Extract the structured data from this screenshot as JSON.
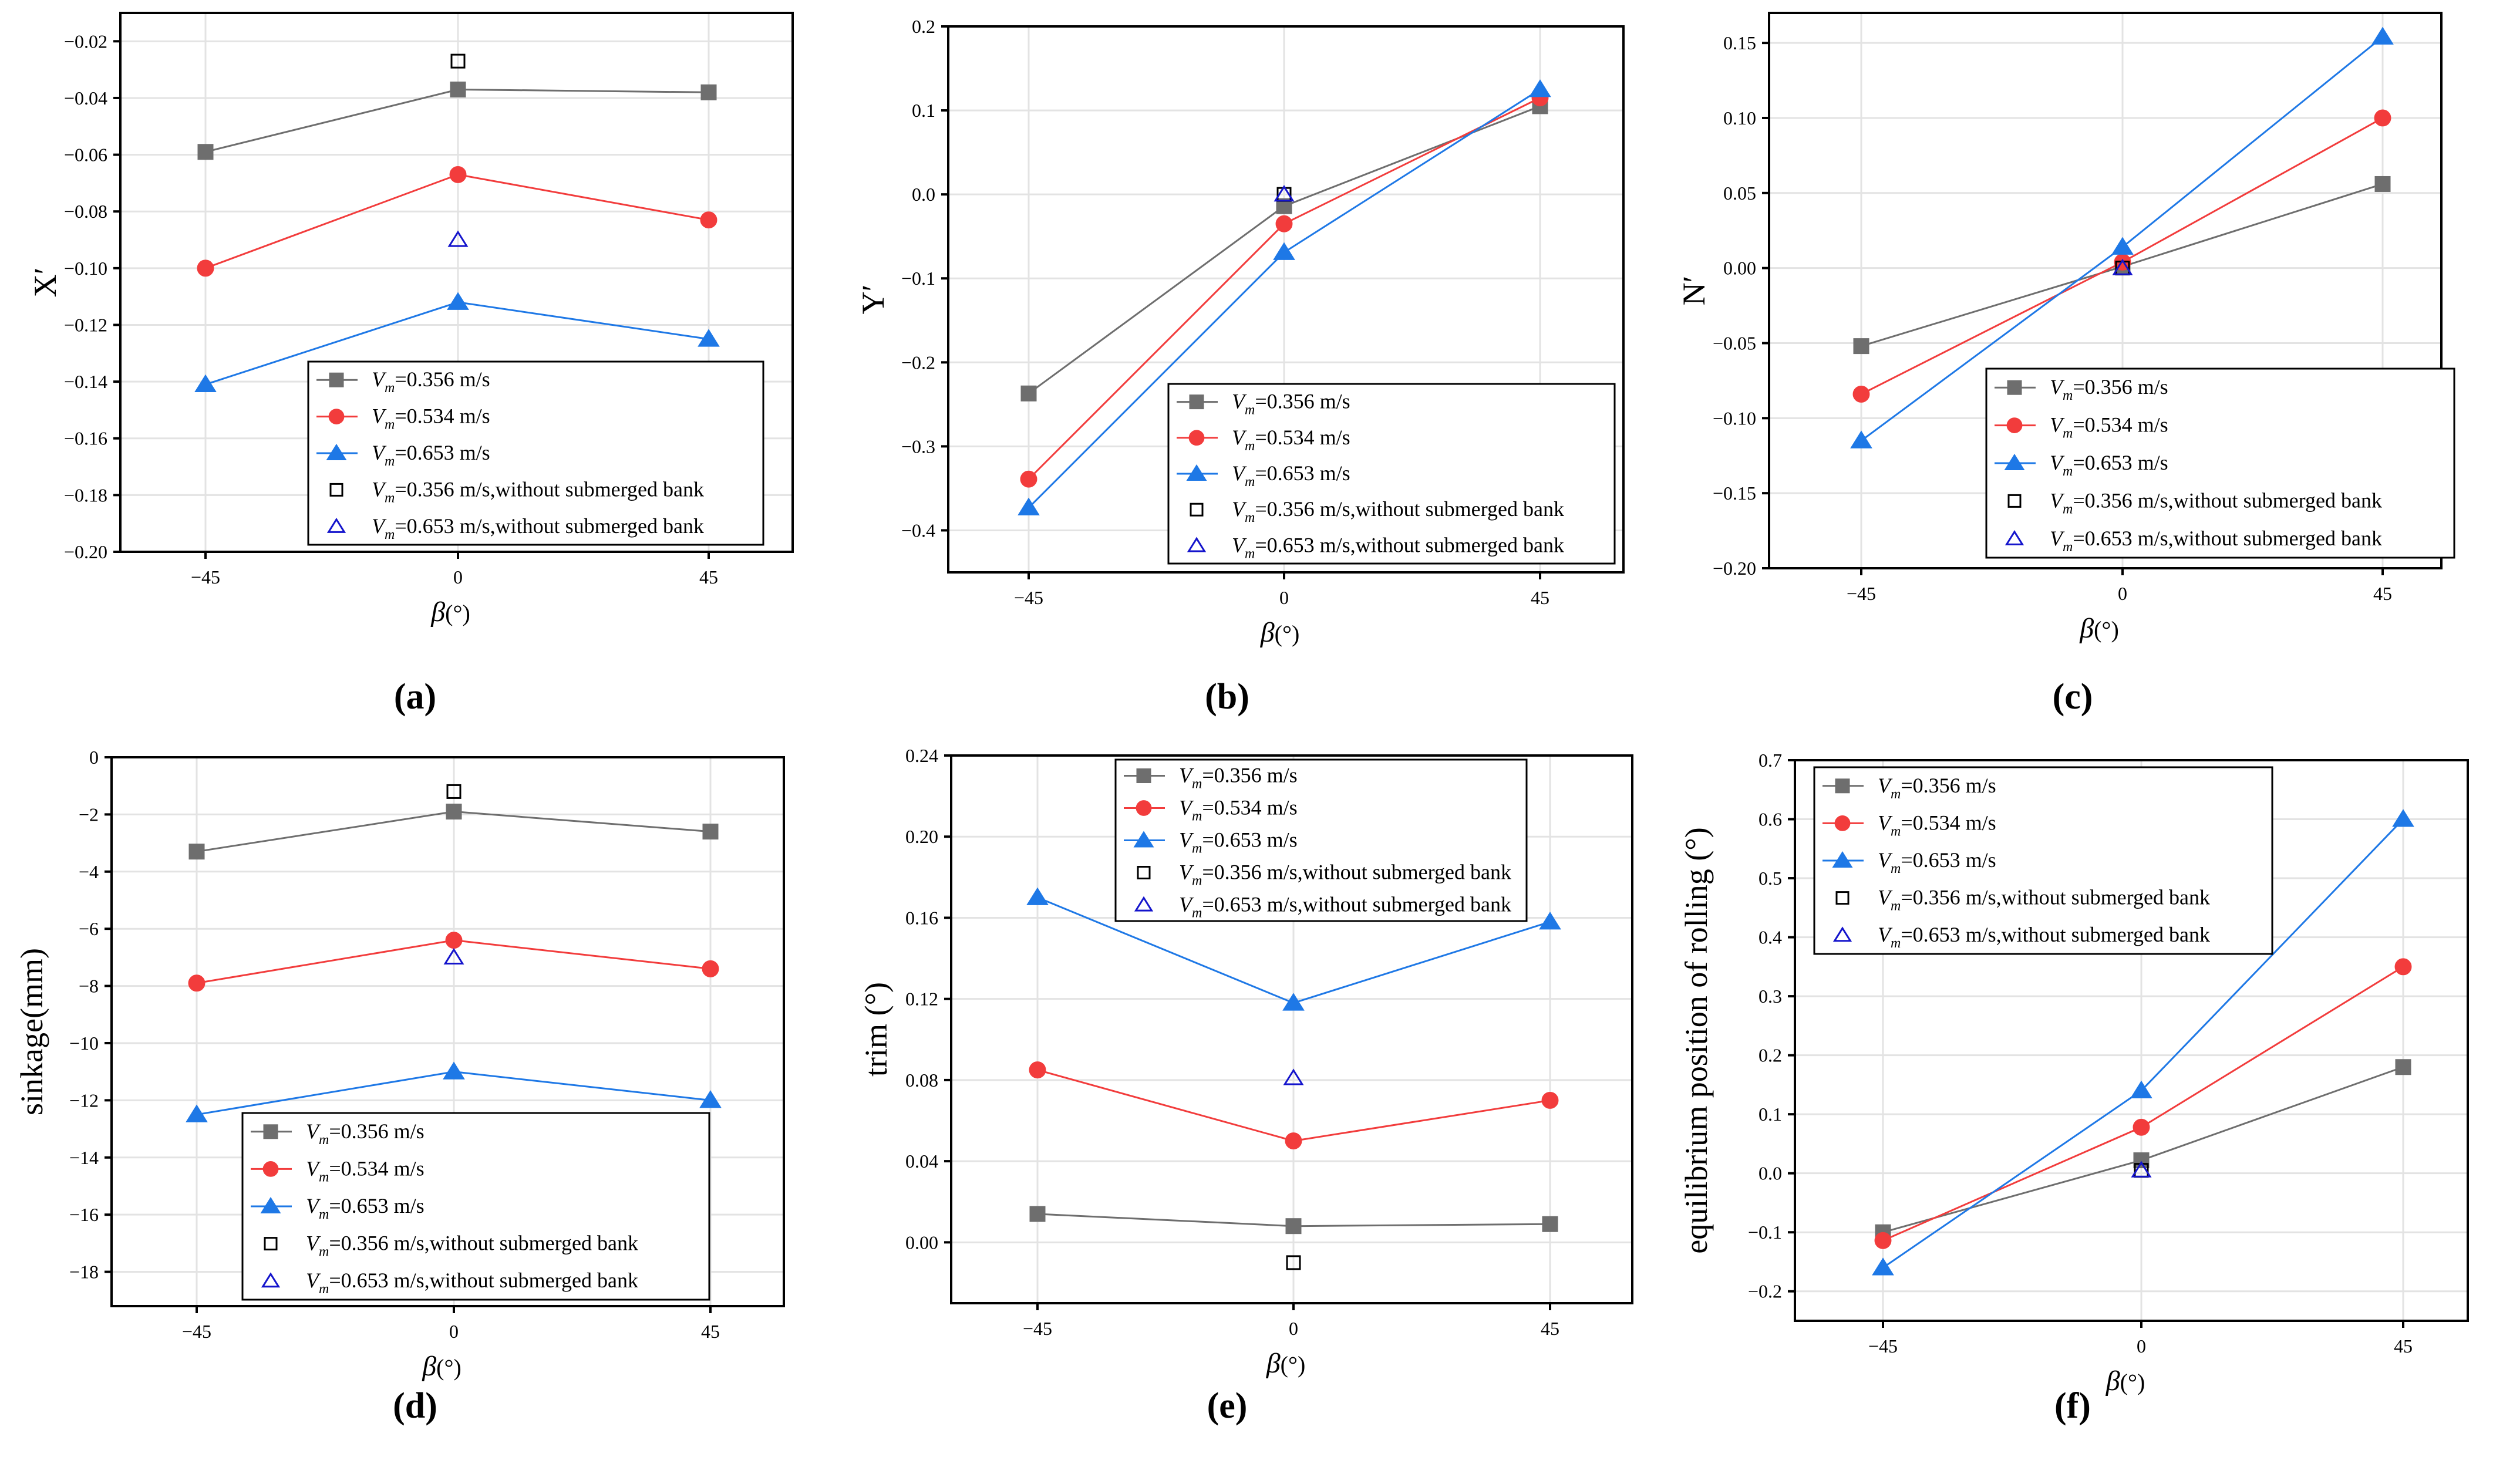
{
  "figure": {
    "colors": {
      "gray": "#6e6e6e",
      "red": "#f23c3c",
      "blue": "#1e78e6",
      "black": "#000000",
      "navy": "#1414cc",
      "grid": "#e3e3e3"
    },
    "legend_entries": [
      {
        "v": "V",
        "sub": "m",
        "text": "=0.356 m/s"
      },
      {
        "v": "V",
        "sub": "m",
        "text": "=0.534 m/s"
      },
      {
        "v": "V",
        "sub": "m",
        "text": "=0.653 m/s"
      },
      {
        "v": "V",
        "sub": "m",
        "text": "=0.356 m/s,without submerged bank"
      },
      {
        "v": "V",
        "sub": "m",
        "text": "=0.653 m/s,without submerged bank"
      }
    ],
    "xlabel": {
      "symbol": "β",
      "unit": "(°)"
    }
  },
  "chart_data": [
    {
      "id": "a",
      "caption": "(a)",
      "type": "line",
      "ylabel": "X′",
      "x": [
        -45,
        0,
        45
      ],
      "xticks": [
        -45,
        0,
        45
      ],
      "ylim": [
        -0.2,
        -0.01
      ],
      "yticks": [
        -0.2,
        -0.18,
        -0.16,
        -0.14,
        -0.12,
        -0.1,
        -0.08,
        -0.06,
        -0.04,
        -0.02
      ],
      "ytick_labels": [
        "−0.20",
        "−0.18",
        "−0.16",
        "−0.14",
        "−0.12",
        "−0.10",
        "−0.08",
        "−0.06",
        "−0.04",
        "−0.02"
      ],
      "legend_position": "bottom-right",
      "series": [
        {
          "name": "Vm=0.356 m/s",
          "values": [
            -0.059,
            -0.037,
            -0.038
          ]
        },
        {
          "name": "Vm=0.534 m/s",
          "values": [
            -0.1,
            -0.067,
            -0.083
          ]
        },
        {
          "name": "Vm=0.653 m/s",
          "values": [
            -0.141,
            -0.112,
            -0.125
          ]
        }
      ],
      "without_bank": [
        {
          "name": "Vm=0.356 m/s,without submerged bank",
          "x": 0,
          "value": -0.027
        },
        {
          "name": "Vm=0.653 m/s,without submerged bank",
          "x": 0,
          "value": -0.09
        }
      ]
    },
    {
      "id": "b",
      "caption": "(b)",
      "type": "line",
      "ylabel": "Y′",
      "x": [
        -45,
        0,
        45
      ],
      "xticks": [
        -45,
        0,
        45
      ],
      "ylim": [
        -0.45,
        0.2
      ],
      "yticks": [
        -0.4,
        -0.3,
        -0.2,
        -0.1,
        0.0,
        0.1,
        0.2
      ],
      "ytick_labels": [
        "−0.4",
        "−0.3",
        "−0.2",
        "−0.1",
        "0.0",
        "0.1",
        "0.2"
      ],
      "legend_position": "bottom-right",
      "series": [
        {
          "name": "Vm=0.356 m/s",
          "values": [
            -0.237,
            -0.014,
            0.105
          ]
        },
        {
          "name": "Vm=0.534 m/s",
          "values": [
            -0.339,
            -0.035,
            0.115
          ]
        },
        {
          "name": "Vm=0.653 m/s",
          "values": [
            -0.373,
            -0.069,
            0.125
          ]
        }
      ],
      "without_bank": [
        {
          "name": "Vm=0.356 m/s,without submerged bank",
          "x": 0,
          "value": 0.0
        },
        {
          "name": "Vm=0.653 m/s,without submerged bank",
          "x": 0,
          "value": 0.0
        }
      ]
    },
    {
      "id": "c",
      "caption": "(c)",
      "type": "line",
      "ylabel": "N′",
      "x": [
        -45,
        0,
        45
      ],
      "xticks": [
        -45,
        0,
        45
      ],
      "ylim": [
        -0.2,
        0.17
      ],
      "yticks": [
        -0.2,
        -0.15,
        -0.1,
        -0.05,
        0.0,
        0.05,
        0.1,
        0.15
      ],
      "ytick_labels": [
        "−0.20",
        "−0.15",
        "−0.10",
        "−0.05",
        "0.00",
        "0.05",
        "0.10",
        "0.15"
      ],
      "legend_position": "bottom-right",
      "series": [
        {
          "name": "Vm=0.356 m/s",
          "values": [
            -0.052,
            0.001,
            0.056
          ]
        },
        {
          "name": "Vm=0.534 m/s",
          "values": [
            -0.084,
            0.004,
            0.1
          ]
        },
        {
          "name": "Vm=0.653 m/s",
          "values": [
            -0.115,
            0.014,
            0.154
          ]
        }
      ],
      "without_bank": [
        {
          "name": "Vm=0.356 m/s,without submerged bank",
          "x": 0,
          "value": 0.0
        },
        {
          "name": "Vm=0.653 m/s,without submerged bank",
          "x": 0,
          "value": 0.0
        }
      ]
    },
    {
      "id": "d",
      "caption": "(d)",
      "type": "line",
      "ylabel": "sinkage(mm)",
      "x": [
        -45,
        0,
        45
      ],
      "xticks": [
        -45,
        0,
        45
      ],
      "ylim": [
        -19.2,
        0
      ],
      "yticks": [
        -18,
        -16,
        -14,
        -12,
        -10,
        -8,
        -6,
        -4,
        -2,
        0
      ],
      "ytick_labels": [
        "−18",
        "−16",
        "−14",
        "−12",
        "−10",
        "−8",
        "−6",
        "−4",
        "−2",
        "0"
      ],
      "legend_position": "bottom-right",
      "series": [
        {
          "name": "Vm=0.356 m/s",
          "values": [
            -3.3,
            -1.9,
            -2.6
          ]
        },
        {
          "name": "Vm=0.534 m/s",
          "values": [
            -7.9,
            -6.4,
            -7.4
          ]
        },
        {
          "name": "Vm=0.653 m/s",
          "values": [
            -12.5,
            -11.0,
            -12.0
          ]
        }
      ],
      "without_bank": [
        {
          "name": "Vm=0.356 m/s,without submerged bank",
          "x": 0,
          "value": -1.2
        },
        {
          "name": "Vm=0.653 m/s,without submerged bank",
          "x": 0,
          "value": -7.0
        }
      ]
    },
    {
      "id": "e",
      "caption": "(e)",
      "type": "line",
      "ylabel": "trim (°)",
      "x": [
        -45,
        0,
        45
      ],
      "xticks": [
        -45,
        0,
        45
      ],
      "ylim": [
        -0.03,
        0.24
      ],
      "yticks": [
        0.0,
        0.04,
        0.08,
        0.12,
        0.16,
        0.2,
        0.24
      ],
      "ytick_labels": [
        "0.00",
        "0.04",
        "0.08",
        "0.12",
        "0.16",
        "0.20",
        "0.24"
      ],
      "legend_position": "top-right",
      "series": [
        {
          "name": "Vm=0.356 m/s",
          "values": [
            0.014,
            0.008,
            0.009
          ]
        },
        {
          "name": "Vm=0.534 m/s",
          "values": [
            0.085,
            0.05,
            0.07
          ]
        },
        {
          "name": "Vm=0.653 m/s",
          "values": [
            0.17,
            0.118,
            0.158
          ]
        }
      ],
      "without_bank": [
        {
          "name": "Vm=0.356 m/s,without submerged bank",
          "x": 0,
          "value": -0.01
        },
        {
          "name": "Vm=0.653 m/s,without submerged bank",
          "x": 0,
          "value": 0.081
        }
      ]
    },
    {
      "id": "f",
      "caption": "(f)",
      "type": "line",
      "ylabel": "equilibrium position of rolling (°)",
      "x": [
        -45,
        0,
        45
      ],
      "xticks": [
        -45,
        0,
        45
      ],
      "ylim": [
        -0.25,
        0.7
      ],
      "yticks": [
        -0.2,
        -0.1,
        0.0,
        0.1,
        0.2,
        0.3,
        0.4,
        0.5,
        0.6,
        0.7
      ],
      "ytick_labels": [
        "−0.2",
        "−0.1",
        "0.0",
        "0.1",
        "0.2",
        "0.3",
        "0.4",
        "0.5",
        "0.6",
        "0.7"
      ],
      "legend_position": "top-left",
      "series": [
        {
          "name": "Vm=0.356 m/s",
          "values": [
            -0.1,
            0.022,
            0.18
          ]
        },
        {
          "name": "Vm=0.534 m/s",
          "values": [
            -0.114,
            0.078,
            0.35
          ]
        },
        {
          "name": "Vm=0.653 m/s",
          "values": [
            -0.16,
            0.14,
            0.6
          ]
        }
      ],
      "without_bank": [
        {
          "name": "Vm=0.356 m/s,without submerged bank",
          "x": 0,
          "value": 0.005
        },
        {
          "name": "Vm=0.653 m/s,without submerged bank",
          "x": 0,
          "value": 0.005
        }
      ]
    }
  ]
}
